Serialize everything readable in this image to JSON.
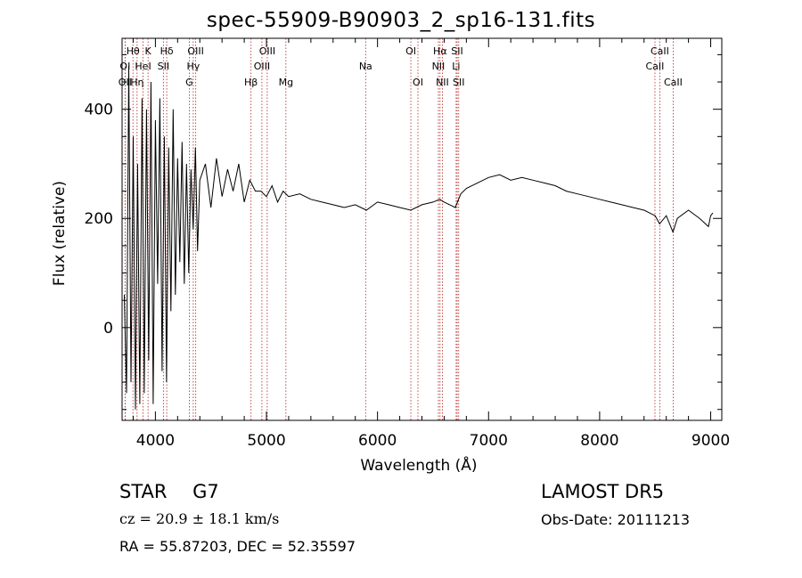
{
  "chart_data": {
    "type": "line",
    "title": "spec-55909-B90903_2_sp16-131.fits",
    "xlabel": "Wavelength (Å)",
    "ylabel": "Flux (relative)",
    "xlim": [
      3700,
      9100
    ],
    "ylim": [
      -170,
      530
    ],
    "xticks": [
      4000,
      5000,
      6000,
      7000,
      8000,
      9000
    ],
    "yticks": [
      0,
      200,
      400
    ],
    "grid": false,
    "line_color": "#000000",
    "marker_color": "#b22222",
    "series": [
      {
        "x": [
          3720,
          3740,
          3760,
          3780,
          3800,
          3820,
          3840,
          3860,
          3880,
          3900,
          3920,
          3940,
          3960,
          3980,
          4000,
          4020,
          4040,
          4060,
          4080,
          4100,
          4120,
          4140,
          4160,
          4180,
          4200,
          4220,
          4240,
          4260,
          4280,
          4300,
          4320,
          4340,
          4360,
          4380,
          4400,
          4450,
          4500,
          4550,
          4600,
          4650,
          4700,
          4750,
          4800,
          4850,
          4900,
          4950,
          5000,
          5050,
          5100,
          5150,
          5200,
          5300,
          5400,
          5500,
          5600,
          5700,
          5800,
          5900,
          6000,
          6100,
          6200,
          6300,
          6400,
          6500,
          6560,
          6600,
          6650,
          6700,
          6750,
          6800,
          6900,
          7000,
          7100,
          7200,
          7300,
          7400,
          7500,
          7600,
          7700,
          7800,
          7900,
          8000,
          8100,
          8200,
          8300,
          8400,
          8500,
          8540,
          8600,
          8660,
          8700,
          8800,
          8900,
          8980,
          9000,
          9020
        ],
        "y": [
          60,
          -120,
          480,
          -100,
          350,
          -150,
          300,
          -140,
          420,
          -120,
          400,
          -60,
          450,
          -140,
          380,
          80,
          420,
          -80,
          350,
          -100,
          330,
          30,
          400,
          60,
          310,
          120,
          340,
          80,
          300,
          100,
          290,
          180,
          330,
          140,
          270,
          300,
          220,
          310,
          240,
          290,
          250,
          300,
          230,
          270,
          250,
          250,
          240,
          260,
          230,
          250,
          240,
          245,
          235,
          230,
          225,
          220,
          225,
          215,
          230,
          225,
          220,
          215,
          225,
          230,
          235,
          230,
          225,
          220,
          245,
          255,
          265,
          275,
          280,
          270,
          275,
          270,
          265,
          260,
          250,
          245,
          240,
          235,
          230,
          225,
          220,
          215,
          205,
          190,
          205,
          175,
          200,
          215,
          200,
          185,
          205,
          210
        ]
      }
    ],
    "lines": [
      {
        "label": "Hθ",
        "x": 3798,
        "row": 1
      },
      {
        "label": "K",
        "x": 3934,
        "row": 1
      },
      {
        "label": "Hδ",
        "x": 4102,
        "row": 1
      },
      {
        "label": "OIII",
        "x": 4363,
        "row": 1
      },
      {
        "label": "OIII",
        "x": 5007,
        "row": 1
      },
      {
        "label": "OI",
        "x": 6300,
        "row": 1
      },
      {
        "label": "Hα",
        "x": 6563,
        "row": 1
      },
      {
        "label": "SII",
        "x": 6717,
        "row": 1
      },
      {
        "label": "CaII",
        "x": 8542,
        "row": 1
      },
      {
        "label": "OI",
        "x": 3727,
        "row": 2
      },
      {
        "label": "HeI",
        "x": 3889,
        "row": 2
      },
      {
        "label": "SII",
        "x": 4072,
        "row": 2
      },
      {
        "label": "Hγ",
        "x": 4341,
        "row": 2
      },
      {
        "label": "OIII",
        "x": 4959,
        "row": 2
      },
      {
        "label": "Na",
        "x": 5893,
        "row": 2
      },
      {
        "label": "NII",
        "x": 6548,
        "row": 2
      },
      {
        "label": "Li",
        "x": 6708,
        "row": 2
      },
      {
        "label": "CaII",
        "x": 8498,
        "row": 2
      },
      {
        "label": "OII",
        "x": 3727,
        "row": 3
      },
      {
        "label": "Hη",
        "x": 3835,
        "row": 3
      },
      {
        "label": "G",
        "x": 4305,
        "row": 3
      },
      {
        "label": "Hβ",
        "x": 4861,
        "row": 3
      },
      {
        "label": "Mg",
        "x": 5175,
        "row": 3
      },
      {
        "label": "OI",
        "x": 6364,
        "row": 3
      },
      {
        "label": "NII",
        "x": 6584,
        "row": 3
      },
      {
        "label": "SII",
        "x": 6731,
        "row": 3
      },
      {
        "label": "CaII",
        "x": 8662,
        "row": 3
      }
    ]
  },
  "info": {
    "class_label": "STAR G7",
    "survey": "LAMOST DR5",
    "cz": "cz = 20.9 ± 18.1 km/s",
    "obs_date": "Obs-Date: 20111213",
    "radec": "RA =  55.87203, DEC =  52.35597"
  }
}
